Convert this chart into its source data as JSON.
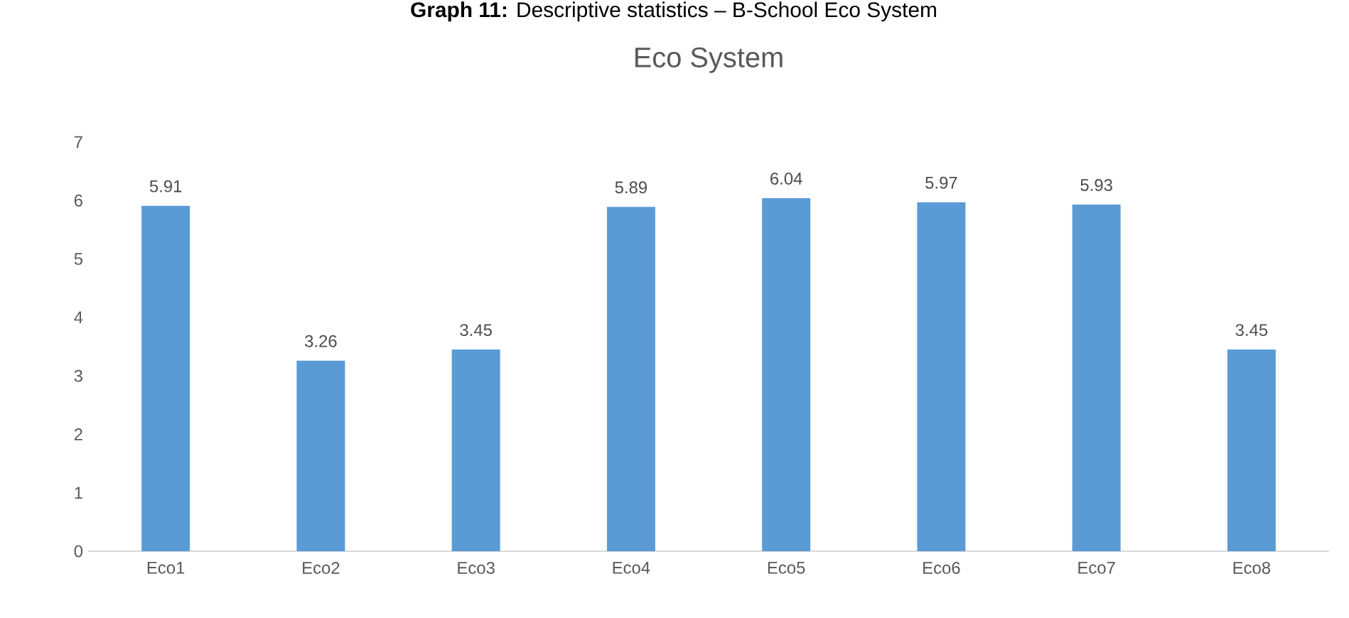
{
  "chart_data": {
    "type": "bar",
    "title": "**Graph 11:** Descriptive statistics – B-School Eco System",
    "subtitle": "Eco System",
    "categories": [
      "Eco1",
      "Eco2",
      "Eco3",
      "Eco4",
      "Eco5",
      "Eco6",
      "Eco7",
      "Eco8"
    ],
    "values": [
      5.91,
      3.26,
      3.45,
      5.89,
      6.04,
      5.97,
      5.93,
      3.45
    ],
    "color": "#5b9bd5",
    "ylim": [
      0,
      7
    ],
    "yticks": [
      0,
      1,
      2,
      3,
      4,
      5,
      6,
      7
    ],
    "data_labels": true,
    "grid": false
  }
}
